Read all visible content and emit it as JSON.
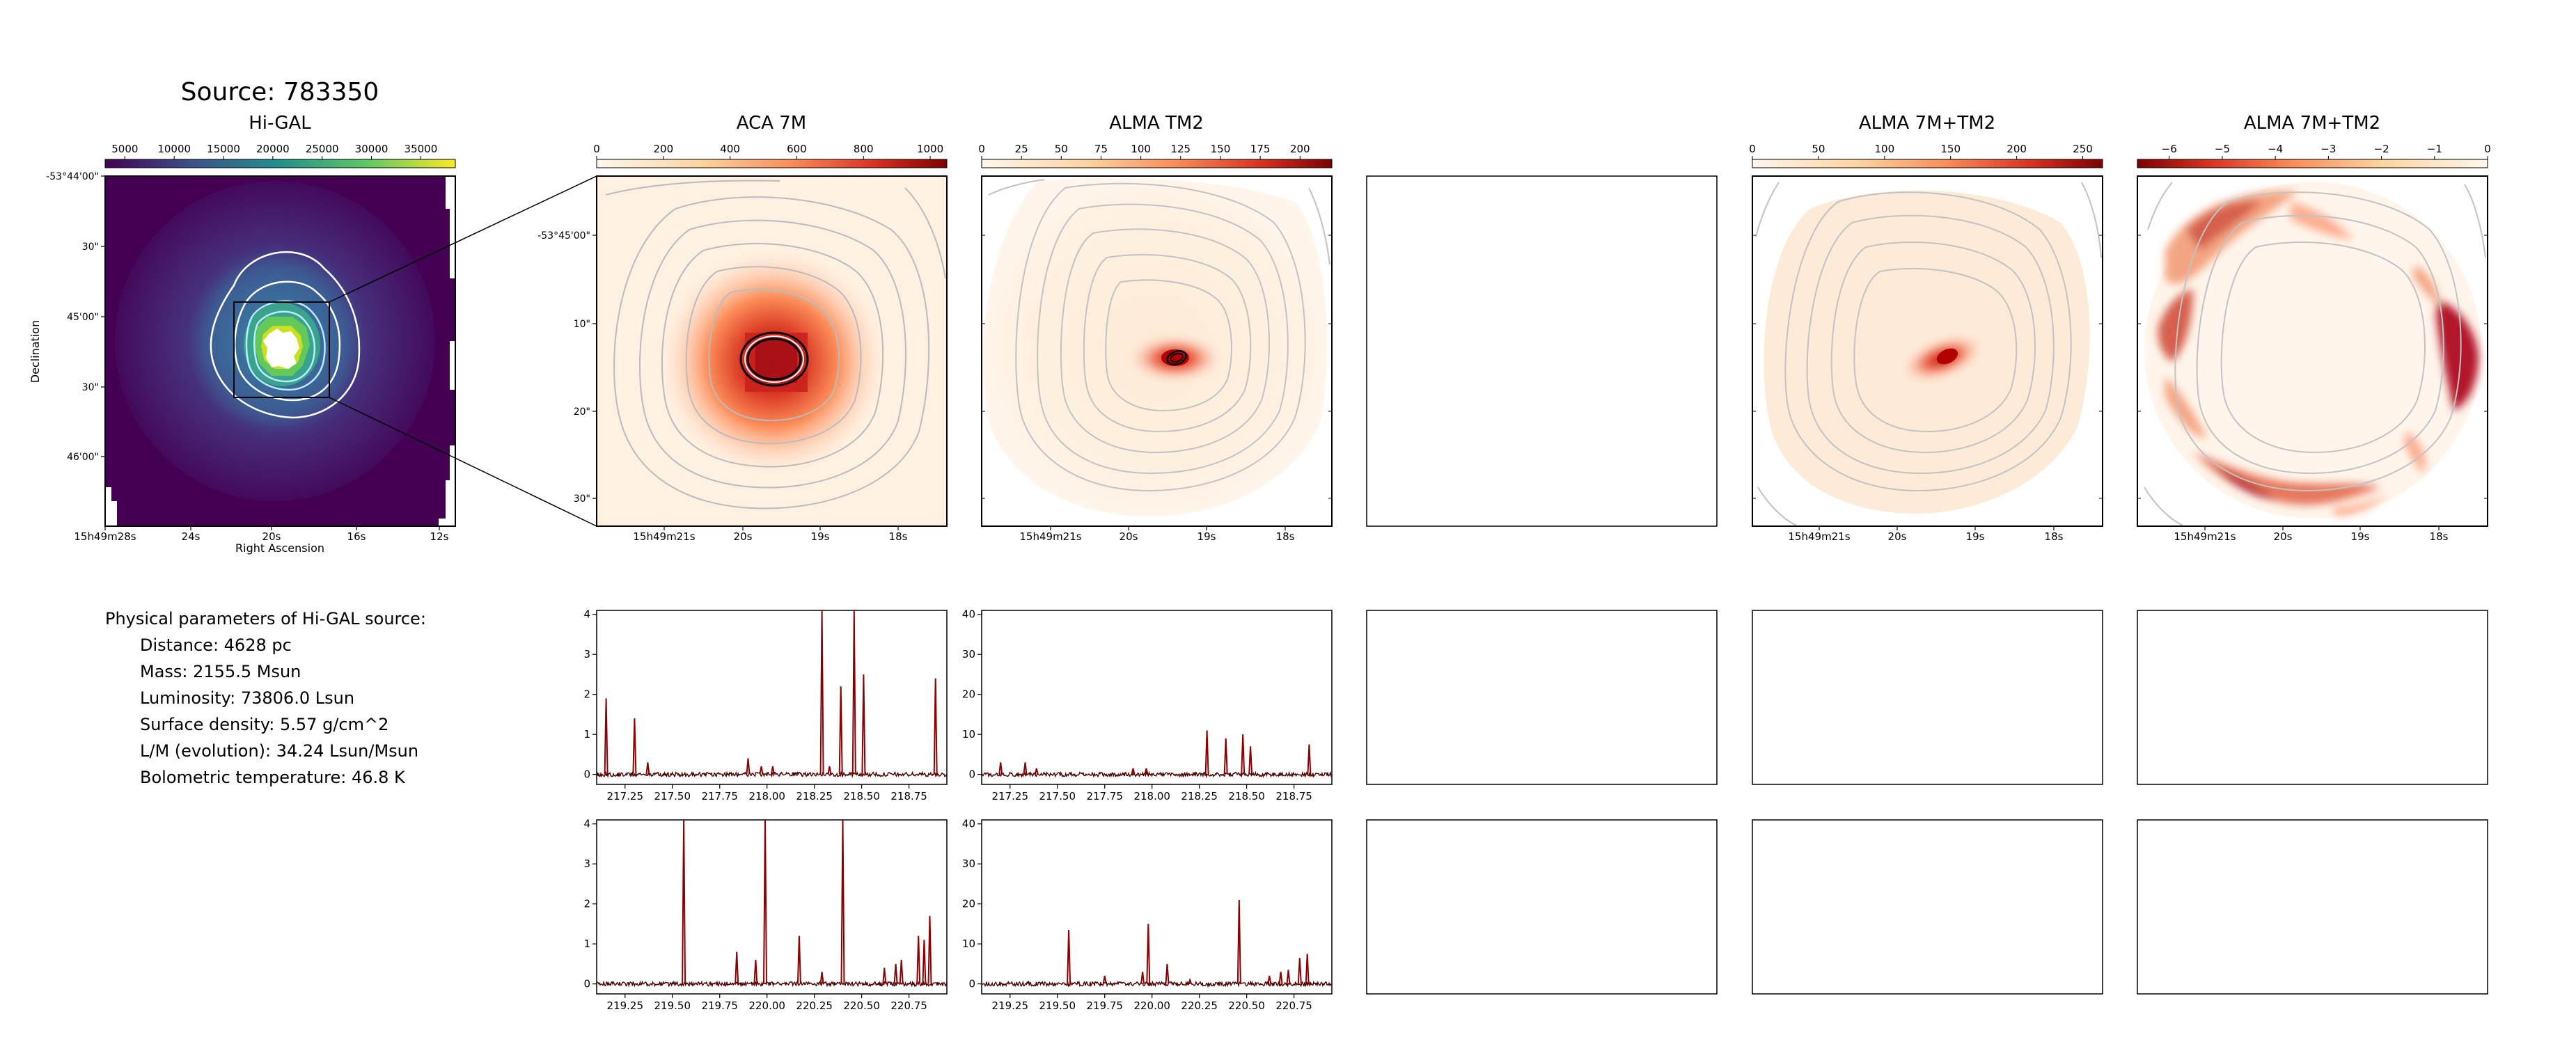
{
  "page": {
    "source_title": "Source: 783350",
    "params_heading": "Physical parameters of Hi-GAL source:",
    "params": [
      "Distance: 4628 pc",
      "Mass: 2155.5 Msun",
      "Luminosity: 73806.0 Lsun",
      "Surface density: 5.57 g/cm^2",
      "L/M (evolution): 34.24 Lsun/Msun",
      "Bolometric temperature: 46.8 K"
    ]
  },
  "chart_data": [
    {
      "type": "heatmap",
      "title": "Hi-GAL",
      "xlabel": "Right Ascension",
      "ylabel": "Declination",
      "xticks": [
        "15h49m28s",
        "24s",
        "20s",
        "16s",
        "12s"
      ],
      "yticks": [
        "-53°44'00\"",
        "30\"",
        "45'00\"",
        "30\"",
        "46'00\""
      ],
      "colorbar_ticks": [
        5000,
        10000,
        15000,
        20000,
        25000,
        30000,
        35000
      ],
      "colormap": "viridis",
      "contours": true,
      "zoom_box": true
    },
    {
      "type": "heatmap",
      "title": "ACA 7M",
      "xticks": [
        "15h49m21s",
        "20s",
        "19s",
        "18s"
      ],
      "yticks": [
        "-53°45'00\"",
        "10\"",
        "20\"",
        "30\""
      ],
      "colorbar_ticks": [
        0,
        200,
        400,
        600,
        800,
        1000
      ],
      "colormap": "OrRd",
      "contours": true
    },
    {
      "type": "heatmap",
      "title": "ALMA TM2",
      "xticks": [
        "15h49m21s",
        "20s",
        "19s",
        "18s"
      ],
      "colorbar_ticks": [
        0,
        25,
        50,
        75,
        100,
        125,
        150,
        175,
        200
      ],
      "colormap": "OrRd",
      "contours": true
    },
    {
      "type": "heatmap",
      "title": "ALMA 7M+TM2",
      "xticks": [
        "15h49m21s",
        "20s",
        "19s",
        "18s"
      ],
      "colorbar_ticks": [
        0,
        50,
        100,
        150,
        200,
        250
      ],
      "colormap": "OrRd",
      "contours": true
    },
    {
      "type": "heatmap",
      "title": "ALMA 7M+TM2",
      "xticks": [
        "15h49m21s",
        "20s",
        "19s",
        "18s"
      ],
      "colorbar_ticks": [
        -6,
        -5,
        -4,
        -3,
        -2,
        -1,
        0
      ],
      "colormap": "OrRd_r",
      "contours": true
    },
    {
      "type": "line",
      "panel": "spectrum ACA 7M (upper band)",
      "xlim": [
        217.1,
        218.95
      ],
      "ylim": [
        -0.25,
        4.1
      ],
      "xticks": [
        "217.25",
        "217.50",
        "217.75",
        "218.00",
        "218.25",
        "218.50",
        "218.75"
      ],
      "yticks": [
        "0",
        "1",
        "2",
        "3",
        "4"
      ],
      "lines": [
        [
          217.15,
          1.9
        ],
        [
          217.3,
          1.4
        ],
        [
          217.37,
          0.3
        ],
        [
          217.9,
          0.4
        ],
        [
          217.97,
          0.2
        ],
        [
          218.03,
          0.2
        ],
        [
          218.29,
          4.1
        ],
        [
          218.33,
          0.2
        ],
        [
          218.39,
          2.2
        ],
        [
          218.46,
          4.1
        ],
        [
          218.51,
          2.5
        ],
        [
          218.89,
          2.4
        ]
      ]
    },
    {
      "type": "line",
      "panel": "spectrum ALMA TM2 (upper band)",
      "xlim": [
        217.1,
        218.95
      ],
      "ylim": [
        -2.5,
        41
      ],
      "xticks": [
        "217.25",
        "217.50",
        "217.75",
        "218.00",
        "218.25",
        "218.50",
        "218.75"
      ],
      "yticks": [
        "0",
        "10",
        "20",
        "30",
        "40"
      ],
      "lines": [
        [
          217.2,
          3
        ],
        [
          217.33,
          3
        ],
        [
          217.39,
          1.5
        ],
        [
          217.9,
          1.5
        ],
        [
          217.97,
          1.5
        ],
        [
          218.29,
          11
        ],
        [
          218.39,
          9
        ],
        [
          218.48,
          10
        ],
        [
          218.52,
          7
        ],
        [
          218.83,
          7.5
        ]
      ]
    },
    {
      "type": "line",
      "panel": "spectrum ACA 7M (lower band)",
      "xlim": [
        219.1,
        220.95
      ],
      "ylim": [
        -0.25,
        4.1
      ],
      "xticks": [
        "219.25",
        "219.50",
        "219.75",
        "220.00",
        "220.25",
        "220.50",
        "220.75"
      ],
      "yticks": [
        "0",
        "1",
        "2",
        "3",
        "4"
      ],
      "lines": [
        [
          219.56,
          4.1
        ],
        [
          219.84,
          0.8
        ],
        [
          219.94,
          0.6
        ],
        [
          219.99,
          4.1
        ],
        [
          220.17,
          1.2
        ],
        [
          220.29,
          0.3
        ],
        [
          220.4,
          4.1
        ],
        [
          220.62,
          0.4
        ],
        [
          220.68,
          0.5
        ],
        [
          220.71,
          0.6
        ],
        [
          220.8,
          1.2
        ],
        [
          220.83,
          1.1
        ],
        [
          220.86,
          1.7
        ]
      ]
    },
    {
      "type": "line",
      "panel": "spectrum ALMA TM2 (lower band)",
      "xlim": [
        219.1,
        220.95
      ],
      "ylim": [
        -2.5,
        41
      ],
      "xticks": [
        "219.25",
        "219.50",
        "219.75",
        "220.00",
        "220.25",
        "220.50",
        "220.75"
      ],
      "yticks": [
        "0",
        "10",
        "20",
        "30",
        "40"
      ],
      "lines": [
        [
          219.56,
          13.5
        ],
        [
          219.75,
          2
        ],
        [
          219.95,
          3
        ],
        [
          219.98,
          15
        ],
        [
          220.08,
          5
        ],
        [
          220.2,
          1
        ],
        [
          220.46,
          21
        ],
        [
          220.62,
          2
        ],
        [
          220.68,
          3
        ],
        [
          220.72,
          3.5
        ],
        [
          220.78,
          6.5
        ],
        [
          220.82,
          7.5
        ]
      ]
    }
  ]
}
